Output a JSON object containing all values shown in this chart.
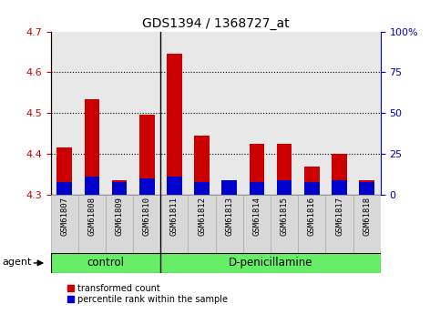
{
  "title": "GDS1394 / 1368727_at",
  "samples": [
    "GSM61807",
    "GSM61808",
    "GSM61809",
    "GSM61810",
    "GSM61811",
    "GSM61812",
    "GSM61813",
    "GSM61814",
    "GSM61815",
    "GSM61816",
    "GSM61817",
    "GSM61818"
  ],
  "red_values": [
    4.415,
    4.535,
    4.335,
    4.495,
    4.645,
    4.445,
    4.335,
    4.425,
    4.425,
    4.37,
    4.4,
    4.335
  ],
  "blue_values": [
    4.33,
    4.345,
    4.33,
    4.34,
    4.345,
    4.33,
    4.335,
    4.33,
    4.335,
    4.33,
    4.335,
    4.33
  ],
  "ylim": [
    4.3,
    4.7
  ],
  "yticks_left": [
    4.3,
    4.4,
    4.5,
    4.6,
    4.7
  ],
  "yticks_right": [
    0,
    25,
    50,
    75,
    100
  ],
  "ytick_labels_right": [
    "0",
    "25",
    "50",
    "75",
    "100%"
  ],
  "bar_bottom": 4.3,
  "bar_width": 0.55,
  "red_color": "#cc0000",
  "blue_color": "#0000cc",
  "axis_bg": "#e8e8e8",
  "control_label": "control",
  "treatment_label": "D-penicillamine",
  "agent_label": "agent",
  "legend_red": "transformed count",
  "legend_blue": "percentile rank within the sample",
  "group_bg": "#66ee66",
  "tick_color_left": "#cc0000",
  "tick_color_right": "#0000cc",
  "n_control": 4,
  "n_treatment": 8
}
